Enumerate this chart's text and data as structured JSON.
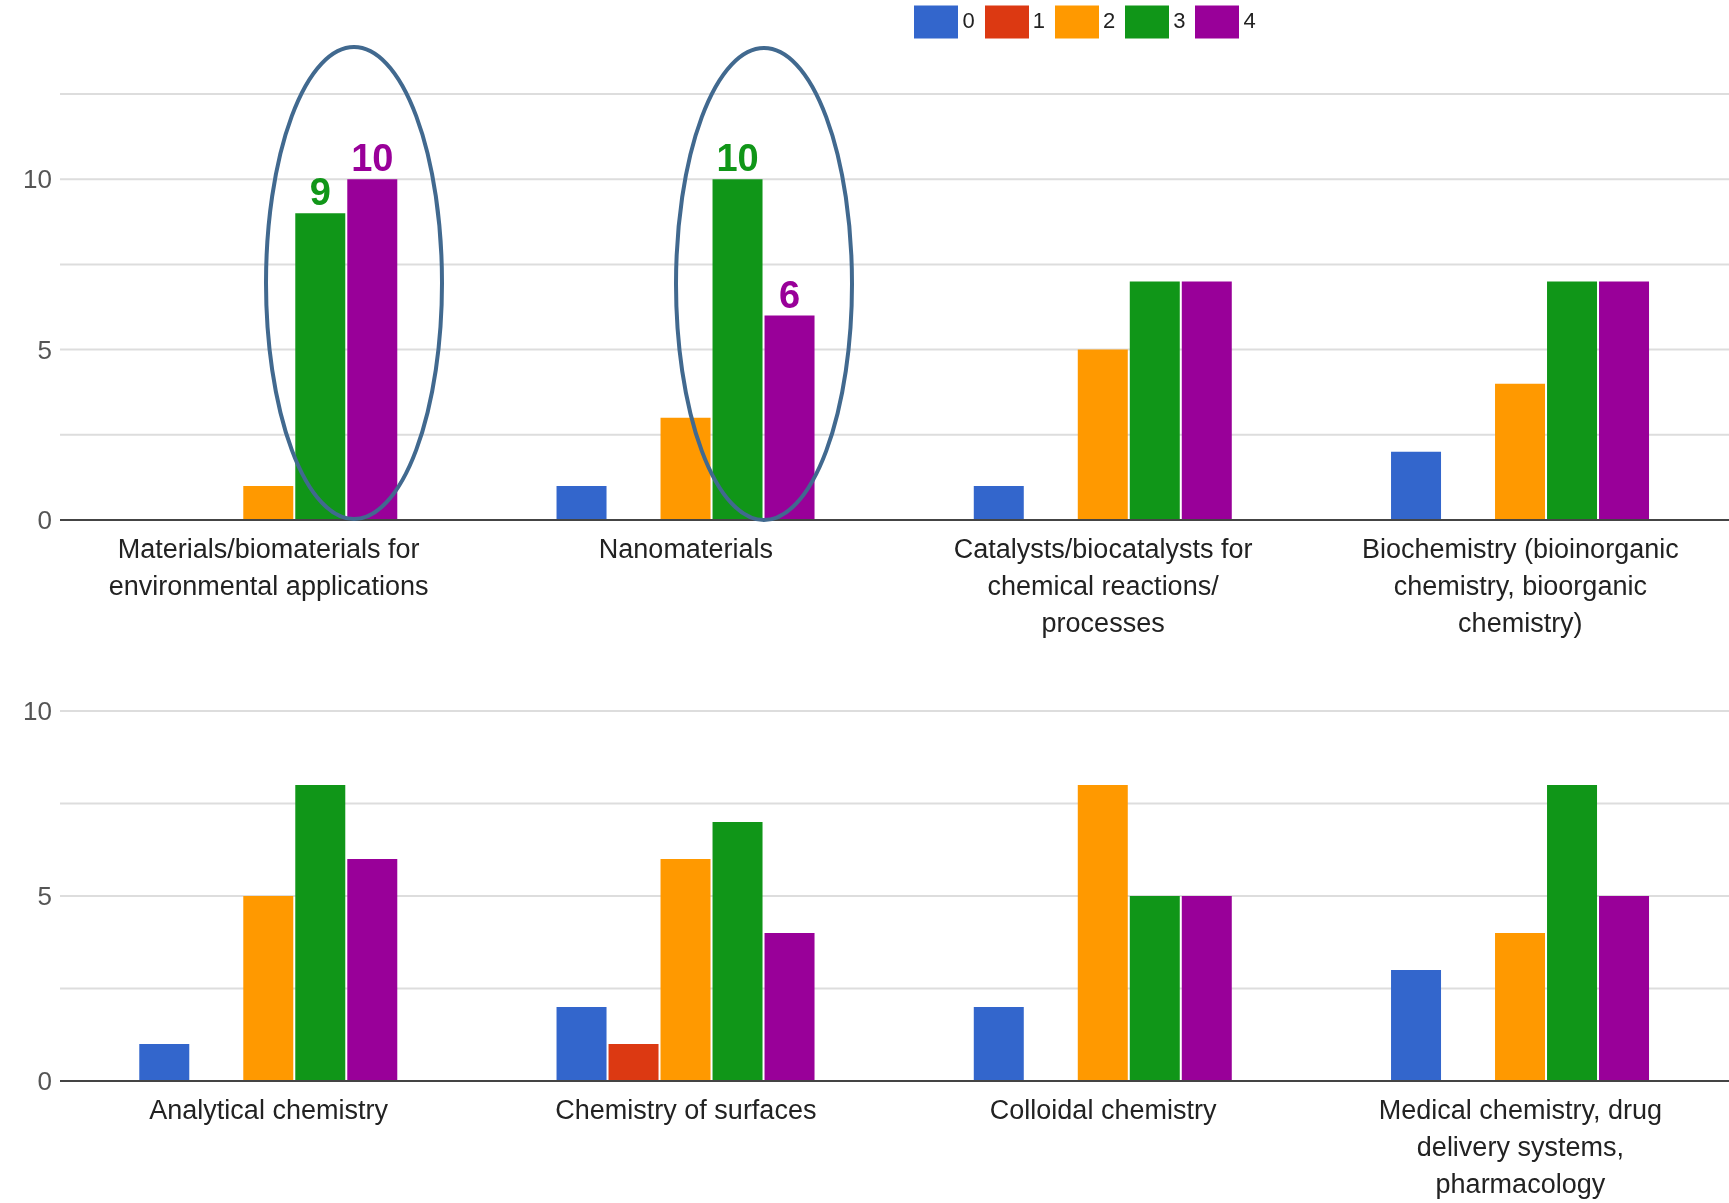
{
  "chart_data": [
    {
      "type": "bar",
      "categories": [
        "Materials/biomaterials for environmental applications",
        "Nanomaterials",
        "Catalysts/biocatalysts for chemical reactions/ processes",
        "Biochemistry (bioinorganic chemistry, bioorganic chemistry)"
      ],
      "series": [
        {
          "name": "0",
          "color": "#3366cc",
          "values": [
            0,
            1,
            1,
            2
          ]
        },
        {
          "name": "1",
          "color": "#dc3912",
          "values": [
            0,
            0,
            0,
            0
          ]
        },
        {
          "name": "2",
          "color": "#ff9900",
          "values": [
            1,
            3,
            5,
            4
          ]
        },
        {
          "name": "3",
          "color": "#109618",
          "values": [
            9,
            10,
            7,
            7
          ],
          "value_labels": [
            "9",
            "10",
            null,
            null
          ]
        },
        {
          "name": "4",
          "color": "#990099",
          "values": [
            10,
            6,
            7,
            7
          ],
          "value_labels": [
            "10",
            "6",
            null,
            null
          ]
        }
      ],
      "ylim": [
        0,
        12.5
      ],
      "yticks": [
        0,
        {
          "value": 2.5,
          "label": null
        },
        5,
        {
          "value": 7.5,
          "label": null
        },
        10,
        {
          "value": 12.5,
          "label": null
        }
      ],
      "grid": "y",
      "legend": "top"
    },
    {
      "type": "bar",
      "categories": [
        "Analytical chemistry",
        "Chemistry of surfaces",
        "Colloidal chemistry",
        "Medical chemistry, drug delivery systems, pharmacology"
      ],
      "series": [
        {
          "color": "#3366cc",
          "values": [
            1,
            2,
            2,
            3
          ]
        },
        {
          "color": "#dc3912",
          "values": [
            0,
            1,
            0,
            0
          ]
        },
        {
          "color": "#ff9900",
          "values": [
            5,
            6,
            8,
            4
          ]
        },
        {
          "color": "#109618",
          "values": [
            8,
            7,
            5,
            8
          ]
        },
        {
          "color": "#990099",
          "values": [
            6,
            4,
            5,
            5
          ]
        }
      ],
      "ylim": [
        0,
        10
      ],
      "yticks": [
        0,
        {
          "value": 2.5,
          "label": null
        },
        5,
        {
          "value": 7.5,
          "label": null
        },
        10
      ],
      "grid": "y"
    }
  ]
}
